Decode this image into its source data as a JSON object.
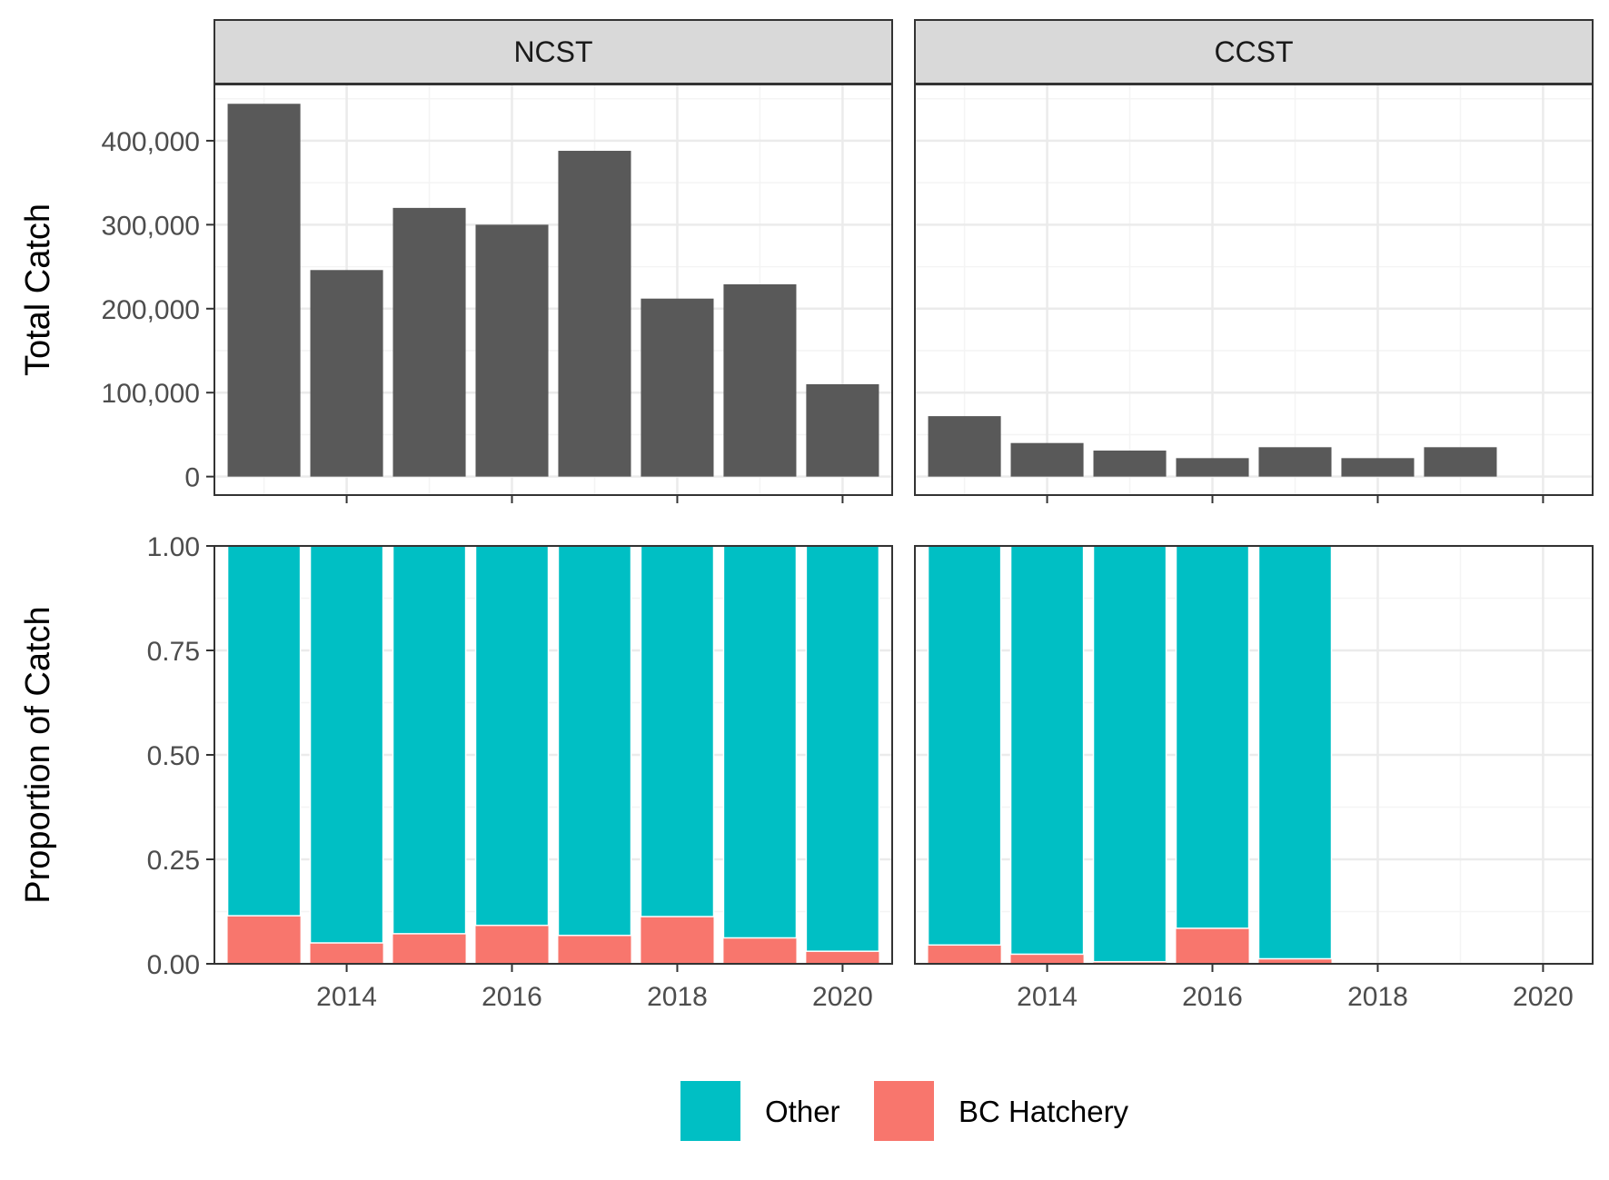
{
  "chart_data": {
    "type": "bar",
    "facets": [
      "NCST",
      "CCST"
    ],
    "x_ticks": [
      2014,
      2016,
      2018,
      2020
    ],
    "top_panel": {
      "ylabel": "Total Catch",
      "yticks": [
        0,
        100000,
        200000,
        300000,
        400000
      ],
      "ytick_labels": [
        "0",
        "100,000",
        "200,000",
        "300,000",
        "400,000"
      ],
      "ylim": [
        -22000,
        467000
      ],
      "bar_color": "#595959",
      "series": [
        {
          "facet": "NCST",
          "x": [
            2013,
            2014,
            2015,
            2016,
            2017,
            2018,
            2019,
            2020
          ],
          "values": [
            444000,
            246000,
            320000,
            300000,
            388000,
            212000,
            229000,
            110000
          ]
        },
        {
          "facet": "CCST",
          "x": [
            2013,
            2014,
            2015,
            2016,
            2017,
            2018,
            2019
          ],
          "values": [
            72000,
            40000,
            31000,
            22000,
            35000,
            22000,
            35000
          ]
        }
      ]
    },
    "bottom_panel": {
      "ylabel": "Proportion of Catch",
      "yticks": [
        0,
        0.25,
        0.5,
        0.75,
        1.0
      ],
      "ytick_labels": [
        "0.00",
        "0.25",
        "0.50",
        "0.75",
        "1.00"
      ],
      "ylim": [
        0,
        1
      ],
      "stacked": true,
      "series": [
        {
          "name": "BC Hatchery",
          "color": "#F8766D",
          "data": {
            "NCST": {
              "x": [
                2013,
                2014,
                2015,
                2016,
                2017,
                2018,
                2019,
                2020
              ],
              "values": [
                0.115,
                0.05,
                0.072,
                0.092,
                0.068,
                0.113,
                0.062,
                0.03
              ]
            },
            "CCST": {
              "x": [
                2013,
                2014,
                2015,
                2016,
                2017
              ],
              "values": [
                0.045,
                0.023,
                0.005,
                0.085,
                0.012
              ]
            }
          }
        },
        {
          "name": "Other",
          "color": "#00BFC4",
          "data": {
            "NCST": {
              "x": [
                2013,
                2014,
                2015,
                2016,
                2017,
                2018,
                2019,
                2020
              ],
              "values": [
                0.885,
                0.95,
                0.928,
                0.908,
                0.932,
                0.887,
                0.938,
                0.97
              ]
            },
            "CCST": {
              "x": [
                2013,
                2014,
                2015,
                2016,
                2017
              ],
              "values": [
                0.955,
                0.977,
                0.995,
                0.915,
                0.988
              ]
            }
          }
        }
      ]
    },
    "legend": {
      "position": "bottom",
      "entries": [
        {
          "label": "Other",
          "color": "#00BFC4"
        },
        {
          "label": "BC Hatchery",
          "color": "#F8766D"
        }
      ]
    },
    "grid": true
  }
}
